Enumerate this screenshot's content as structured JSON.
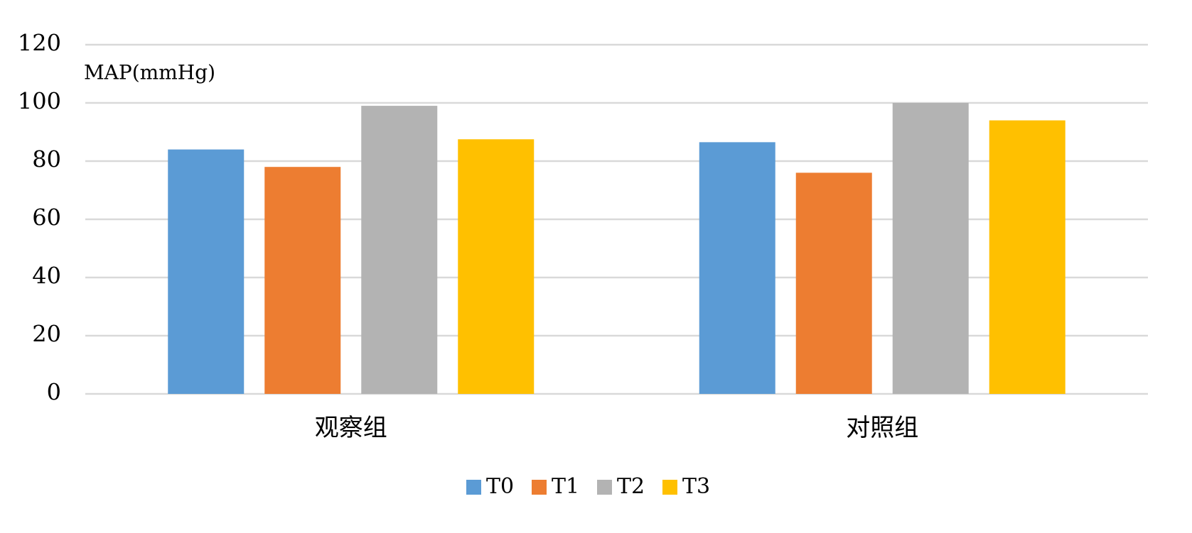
{
  "chart_data": {
    "type": "bar",
    "y_label": "MAP(mmHg)",
    "categories": [
      "观察组",
      "对照组"
    ],
    "series": [
      {
        "name": "T0",
        "color": "#5b9bd5",
        "values": [
          84,
          86.5
        ]
      },
      {
        "name": "T1",
        "color": "#ed7d31",
        "values": [
          78,
          76
        ]
      },
      {
        "name": "T2",
        "color": "#b3b3b3",
        "values": [
          99,
          100
        ]
      },
      {
        "name": "T3",
        "color": "#ffc000",
        "values": [
          87.5,
          94
        ]
      }
    ],
    "ylim": [
      0,
      120
    ],
    "yticks": [
      0,
      20,
      40,
      60,
      80,
      100,
      120
    ],
    "grid": true,
    "legend": "bottom"
  }
}
